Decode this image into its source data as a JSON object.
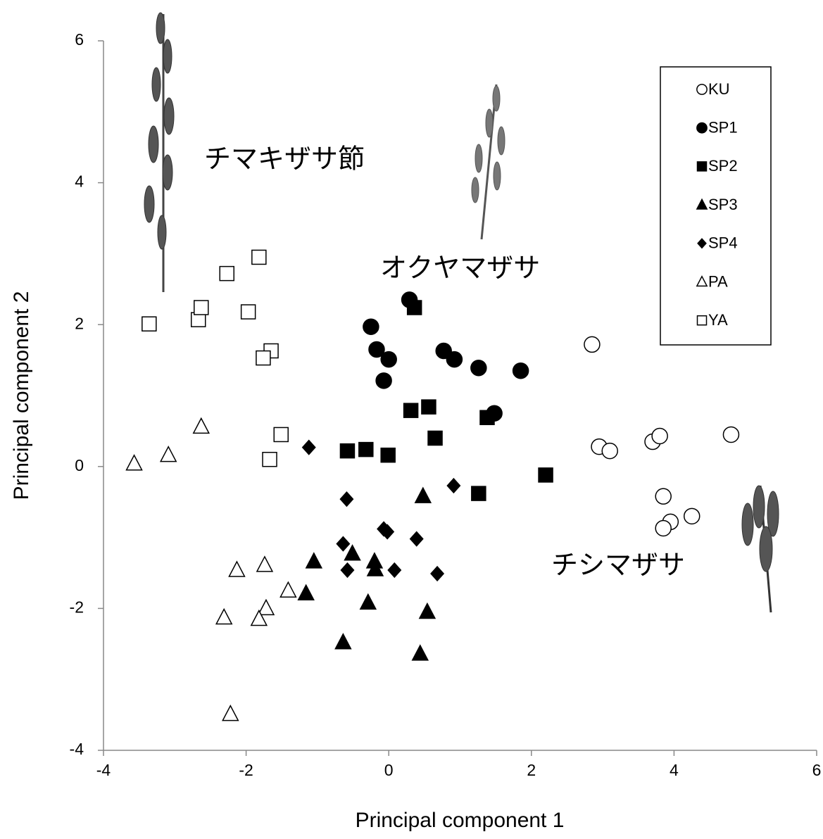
{
  "chart_data": {
    "type": "scatter",
    "xlabel": "Principal component 1",
    "ylabel": "Principal component 2",
    "xlim": [
      -4,
      6
    ],
    "ylim": [
      -4,
      6
    ],
    "xticks": [
      -4,
      -2,
      0,
      2,
      4,
      6
    ],
    "yticks": [
      -4,
      -2,
      0,
      2,
      4,
      6
    ],
    "grid": false,
    "legend": "upper right",
    "annotations": [
      "チマキザサ節",
      "オクヤマザサ",
      "チシマザサ"
    ],
    "series": [
      {
        "name": "KU",
        "color": "#000000",
        "marker": "circle",
        "filled": false,
        "x": [
          2.85,
          2.95,
          3.1,
          3.7,
          3.8,
          4.8,
          3.85,
          3.95,
          3.85,
          4.25
        ],
        "values": [
          1.72,
          0.28,
          0.22,
          0.35,
          0.43,
          0.45,
          -0.42,
          -0.78,
          -0.87,
          -0.7
        ]
      },
      {
        "name": "SP1",
        "color": "#000000",
        "marker": "circle",
        "filled": true,
        "x": [
          0.29,
          -0.25,
          -0.17,
          0,
          -0.07,
          0.77,
          0.92,
          1.26,
          1.85,
          1.48
        ],
        "values": [
          2.35,
          1.97,
          1.65,
          1.51,
          1.21,
          1.63,
          1.51,
          1.39,
          1.35,
          0.75
        ]
      },
      {
        "name": "SP2",
        "color": "#000000",
        "marker": "square",
        "filled": true,
        "x": [
          0.36,
          0.31,
          0.56,
          0.65,
          1.38,
          -0.58,
          -0.32,
          -0.01,
          1.26,
          2.2
        ],
        "values": [
          2.24,
          0.79,
          0.84,
          0.4,
          0.69,
          0.22,
          0.24,
          0.16,
          -0.38,
          -0.12
        ]
      },
      {
        "name": "SP3",
        "color": "#000000",
        "marker": "triangle",
        "filled": true,
        "x": [
          0.48,
          -0.51,
          -0.2,
          -0.19,
          -1.05,
          -1.16,
          -0.29,
          0.54,
          -0.64,
          0.44
        ],
        "values": [
          -0.42,
          -1.23,
          -1.34,
          -1.45,
          -1.34,
          -1.79,
          -1.92,
          -2.05,
          -2.48,
          -2.64
        ]
      },
      {
        "name": "SP4",
        "color": "#000000",
        "marker": "diamond",
        "filled": true,
        "x": [
          -1.12,
          0.91,
          -0.59,
          -0.07,
          -0.02,
          0.39,
          -0.64,
          -0.58,
          0.08,
          0.68
        ],
        "values": [
          0.27,
          -0.27,
          -0.46,
          -0.88,
          -0.92,
          -1.02,
          -1.09,
          -1.46,
          -1.46,
          -1.51
        ]
      },
      {
        "name": "PA",
        "color": "#000000",
        "marker": "triangle",
        "filled": false,
        "x": [
          -3.57,
          -3.09,
          -2.63,
          -2.13,
          -1.74,
          -1.41,
          -1.72,
          -1.82,
          -2.31,
          -2.22
        ],
        "values": [
          0.04,
          0.16,
          0.56,
          -1.46,
          -1.39,
          -1.75,
          -2.0,
          -2.15,
          -2.13,
          -3.49
        ]
      },
      {
        "name": "YA",
        "color": "#000000",
        "marker": "square",
        "filled": false,
        "x": [
          -3.36,
          -2.67,
          -2.63,
          -2.27,
          -1.82,
          -1.97,
          -1.65,
          -1.76,
          -1.51,
          -1.67
        ],
        "values": [
          2.01,
          2.07,
          2.24,
          2.72,
          2.95,
          2.18,
          1.63,
          1.53,
          0.45,
          0.1
        ]
      }
    ]
  }
}
